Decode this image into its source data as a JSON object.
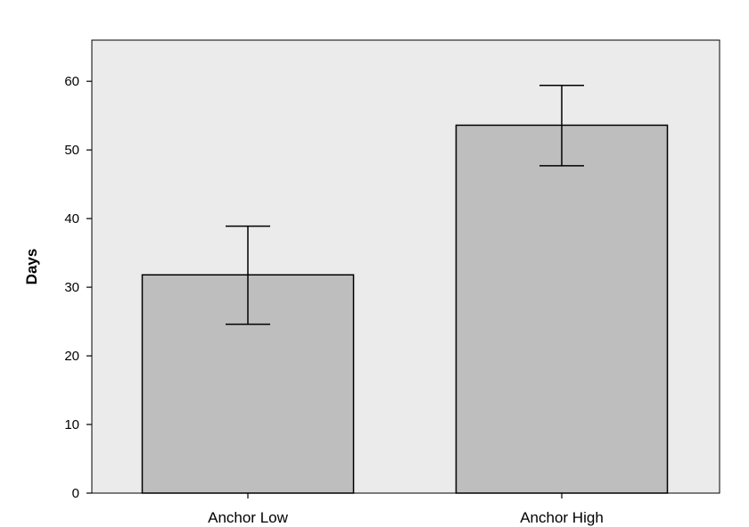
{
  "chart_data": {
    "type": "bar",
    "title": "",
    "xlabel": "",
    "ylabel": "Days",
    "categories": [
      "Anchor Low",
      "Anchor High"
    ],
    "values": [
      31.8,
      53.6
    ],
    "error_bars": [
      {
        "low": 24.6,
        "high": 38.9
      },
      {
        "low": 47.7,
        "high": 59.4
      }
    ],
    "ylim": [
      0,
      66
    ],
    "yticks": [
      0,
      10,
      20,
      30,
      40,
      50,
      60
    ],
    "grid": false,
    "legend": "none",
    "colors": {
      "plot_background": "#ebebeb",
      "bar_fill": "#bebebe",
      "bar_stroke": "#000000",
      "axis": "#000000"
    }
  }
}
